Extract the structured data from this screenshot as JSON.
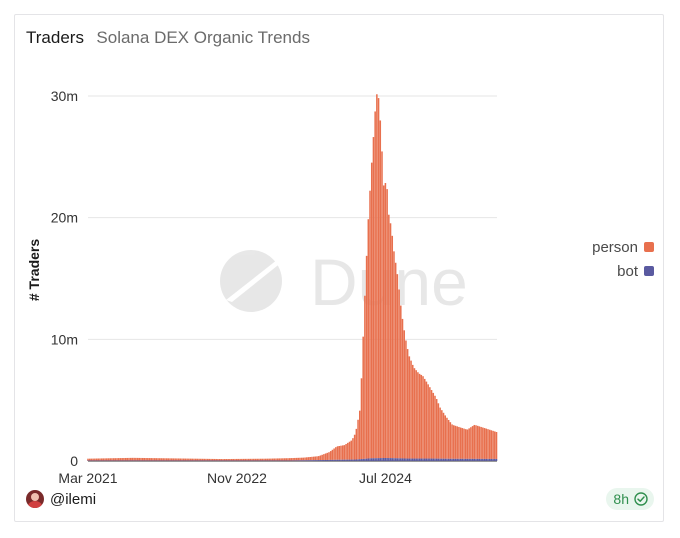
{
  "header": {
    "title": "Traders",
    "subtitle": "Solana DEX Organic Trends"
  },
  "footer": {
    "username": "@ilemi",
    "freshness": "8h"
  },
  "colors": {
    "person": "#e8704e",
    "bot": "#5a5aa0"
  },
  "icons": {
    "avatar": "avatar-icon",
    "freshness": "check-circle-icon",
    "watermark": "dune-logo"
  },
  "chart_data": {
    "type": "bar",
    "stacked": true,
    "title": "",
    "xlabel": "",
    "ylabel": "# Traders",
    "ylim": [
      0,
      30000000
    ],
    "yticks": [
      0,
      10000000,
      20000000,
      30000000
    ],
    "ytick_labels": [
      "0",
      "10m",
      "20m",
      "30m"
    ],
    "xticks": [
      "2021-03-01",
      "2022-11-01",
      "2024-07-01"
    ],
    "xtick_labels": [
      "Mar 2021",
      "Nov 2022",
      "Jul 2024"
    ],
    "xlim": [
      "2021-03-01",
      "2025-10-01"
    ],
    "grid": true,
    "legend": "right",
    "watermark": "Dune",
    "series": [
      {
        "name": "person",
        "color": "#e8704e",
        "points": [
          [
            "2021-03-01",
            150000
          ],
          [
            "2021-09-01",
            220000
          ],
          [
            "2022-03-01",
            170000
          ],
          [
            "2022-09-01",
            120000
          ],
          [
            "2023-03-01",
            150000
          ],
          [
            "2023-08-01",
            220000
          ],
          [
            "2023-10-01",
            320000
          ],
          [
            "2023-11-15",
            650000
          ],
          [
            "2023-12-15",
            1100000
          ],
          [
            "2024-01-15",
            1200000
          ],
          [
            "2024-02-15",
            1600000
          ],
          [
            "2024-03-01",
            2200000
          ],
          [
            "2024-03-20",
            4200000
          ],
          [
            "2024-04-05",
            12000000
          ],
          [
            "2024-04-20",
            19000000
          ],
          [
            "2024-05-05",
            24000000
          ],
          [
            "2024-05-15",
            27000000
          ],
          [
            "2024-05-25",
            30000000
          ],
          [
            "2024-06-05",
            29500000
          ],
          [
            "2024-06-15",
            26000000
          ],
          [
            "2024-06-25",
            22000000
          ],
          [
            "2024-07-05",
            23000000
          ],
          [
            "2024-07-15",
            20000000
          ],
          [
            "2024-07-25",
            19000000
          ],
          [
            "2024-08-05",
            17000000
          ],
          [
            "2024-08-20",
            15000000
          ],
          [
            "2024-09-05",
            12000000
          ],
          [
            "2024-09-20",
            10000000
          ],
          [
            "2024-10-05",
            8500000
          ],
          [
            "2024-10-25",
            7500000
          ],
          [
            "2024-11-15",
            7000000
          ],
          [
            "2024-12-01",
            6800000
          ],
          [
            "2024-12-20",
            6200000
          ],
          [
            "2025-01-10",
            5500000
          ],
          [
            "2025-01-25",
            5000000
          ],
          [
            "2025-02-10",
            4200000
          ],
          [
            "2025-03-05",
            3500000
          ],
          [
            "2025-04-01",
            2800000
          ],
          [
            "2025-05-01",
            2600000
          ],
          [
            "2025-06-01",
            2400000
          ],
          [
            "2025-07-01",
            2800000
          ],
          [
            "2025-08-01",
            2600000
          ],
          [
            "2025-09-01",
            2400000
          ],
          [
            "2025-10-01",
            2200000
          ]
        ]
      },
      {
        "name": "bot",
        "color": "#5a5aa0",
        "points": [
          [
            "2021-03-01",
            40000
          ],
          [
            "2023-06-01",
            40000
          ],
          [
            "2024-03-01",
            120000
          ],
          [
            "2024-05-01",
            220000
          ],
          [
            "2024-07-01",
            250000
          ],
          [
            "2024-10-01",
            200000
          ],
          [
            "2025-01-01",
            200000
          ],
          [
            "2025-04-01",
            180000
          ],
          [
            "2025-10-01",
            170000
          ]
        ]
      }
    ]
  }
}
